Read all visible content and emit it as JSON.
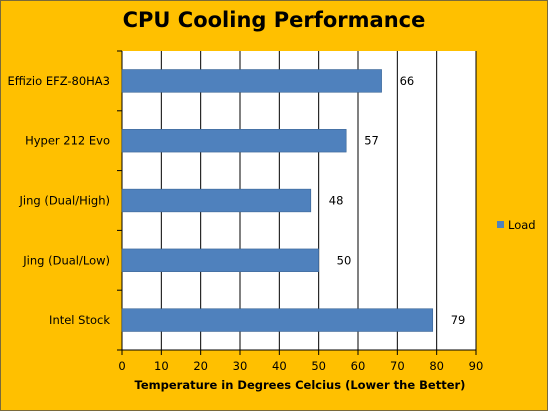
{
  "chart_data": {
    "type": "bar",
    "orientation": "horizontal",
    "title": "CPU Cooling Performance",
    "xlabel": "Temperature in Degrees Celcius (Lower the Better)",
    "ylabel": "",
    "categories": [
      "Effizio EFZ-80HA3",
      "Hyper 212 Evo",
      "Jing (Dual/High)",
      "Jing (Dual/Low)",
      "Intel Stock"
    ],
    "series": [
      {
        "name": "Load",
        "values": [
          66,
          57,
          48,
          50,
          79
        ],
        "color": "#4F81BD"
      }
    ],
    "xlim": [
      0,
      90
    ],
    "xticks": [
      "0",
      "10",
      "20",
      "30",
      "40",
      "50",
      "60",
      "70",
      "80",
      "90"
    ],
    "grid": true,
    "legend_position": "right",
    "background_color": "#FFC000",
    "plot_background_color": "#FFFFFF"
  }
}
